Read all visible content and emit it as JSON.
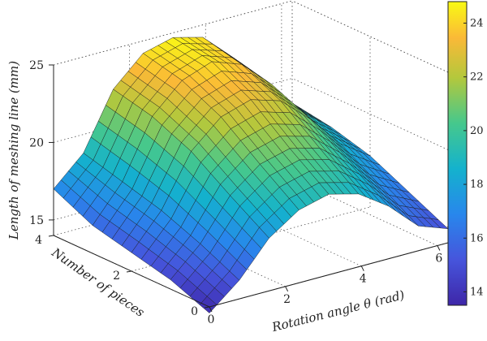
{
  "chart_data": {
    "type": "surface",
    "title": "",
    "xlabel": "Rotation angle θ (rad)",
    "ylabel": "Number of pieces",
    "zlabel": "Length of meshing line (mm)",
    "x_ticks": [
      0,
      2,
      4,
      6
    ],
    "y_ticks": [
      0,
      2,
      4
    ],
    "z_ticks": [
      15,
      20,
      25
    ],
    "xlim": [
      0,
      6.28
    ],
    "ylim": [
      0,
      4
    ],
    "zlim": [
      14,
      25
    ],
    "colormap": "parula",
    "colorbar_ticks": [
      14,
      16,
      18,
      20,
      22,
      24
    ],
    "colorbar_range": [
      13.5,
      24.8
    ],
    "theta": [
      0,
      0.785,
      1.571,
      2.356,
      3.142,
      3.927,
      4.712,
      5.498,
      6.283
    ],
    "pieces": [
      0,
      1,
      2,
      3,
      4
    ],
    "length": [
      [
        13.6,
        15.2,
        17.4,
        18.7,
        19.2,
        18.7,
        17.4,
        15.6,
        14.9
      ],
      [
        14.6,
        16.4,
        19.0,
        20.5,
        21.0,
        20.5,
        19.0,
        17.1,
        16.1
      ],
      [
        15.2,
        17.4,
        20.7,
        22.4,
        23.0,
        22.4,
        20.7,
        18.6,
        17.3
      ],
      [
        15.8,
        18.1,
        21.8,
        23.6,
        24.3,
        23.6,
        21.8,
        19.5,
        18.0
      ],
      [
        17.0,
        18.8,
        22.4,
        24.2,
        24.7,
        24.2,
        22.4,
        20.0,
        18.4
      ]
    ]
  }
}
